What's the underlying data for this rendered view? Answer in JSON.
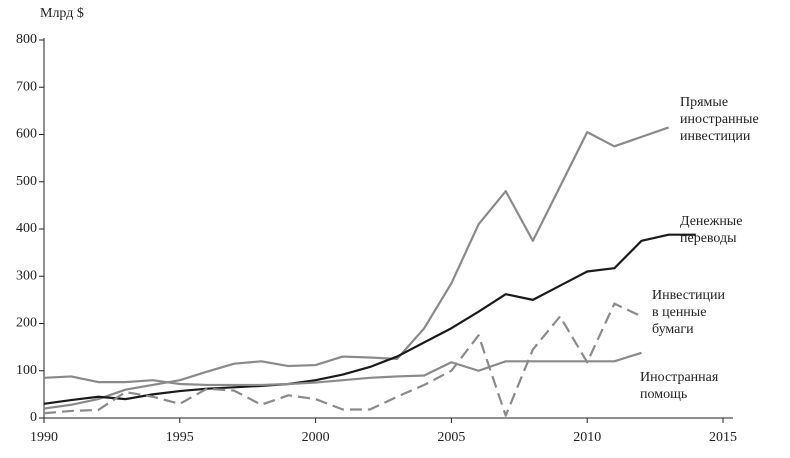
{
  "chart_data": {
    "type": "line",
    "y_label": "Млрд $",
    "x": [
      1990,
      1991,
      1992,
      1993,
      1994,
      1995,
      1996,
      1997,
      1998,
      1999,
      2000,
      2001,
      2002,
      2003,
      2004,
      2005,
      2006,
      2007,
      2008,
      2009,
      2010,
      2011,
      2012,
      2013,
      2014
    ],
    "series": [
      {
        "name_lines": [
          "Прямые",
          "иностранные",
          "инвестиции"
        ],
        "color": "#8a8a8a",
        "dash": false,
        "values": [
          20,
          28,
          40,
          60,
          70,
          80,
          98,
          115,
          120,
          110,
          112,
          130,
          128,
          125,
          190,
          285,
          410,
          480,
          375,
          490,
          605,
          575,
          595,
          615,
          null
        ]
      },
      {
        "name_lines": [
          "Денежные",
          "переводы"
        ],
        "color": "#1a1a1a",
        "dash": false,
        "values": [
          30,
          38,
          45,
          40,
          50,
          57,
          62,
          65,
          68,
          72,
          80,
          92,
          108,
          130,
          160,
          190,
          225,
          262,
          250,
          280,
          310,
          317,
          375,
          388,
          388
        ]
      },
      {
        "name_lines": [
          "Инвестиции",
          "в ценные",
          "бумаги"
        ],
        "color": "#8a8a8a",
        "dash": true,
        "values": [
          10,
          15,
          17,
          55,
          45,
          30,
          62,
          58,
          28,
          48,
          40,
          18,
          18,
          45,
          70,
          100,
          175,
          5,
          145,
          215,
          118,
          242,
          215,
          null,
          null
        ]
      },
      {
        "name_lines": [
          "Иностранная",
          "помощь"
        ],
        "color": "#8a8a8a",
        "dash": false,
        "values": [
          85,
          88,
          76,
          76,
          80,
          72,
          70,
          70,
          70,
          72,
          75,
          80,
          85,
          88,
          90,
          118,
          100,
          120,
          120,
          120,
          120,
          120,
          138,
          null,
          null
        ]
      }
    ],
    "xlim": [
      1990,
      2015
    ],
    "xticks": [
      1990,
      1995,
      2000,
      2005,
      2010,
      2015
    ],
    "ylim": [
      0,
      800
    ],
    "yticks": [
      0,
      100,
      200,
      300,
      400,
      500,
      600,
      700,
      800
    ]
  }
}
